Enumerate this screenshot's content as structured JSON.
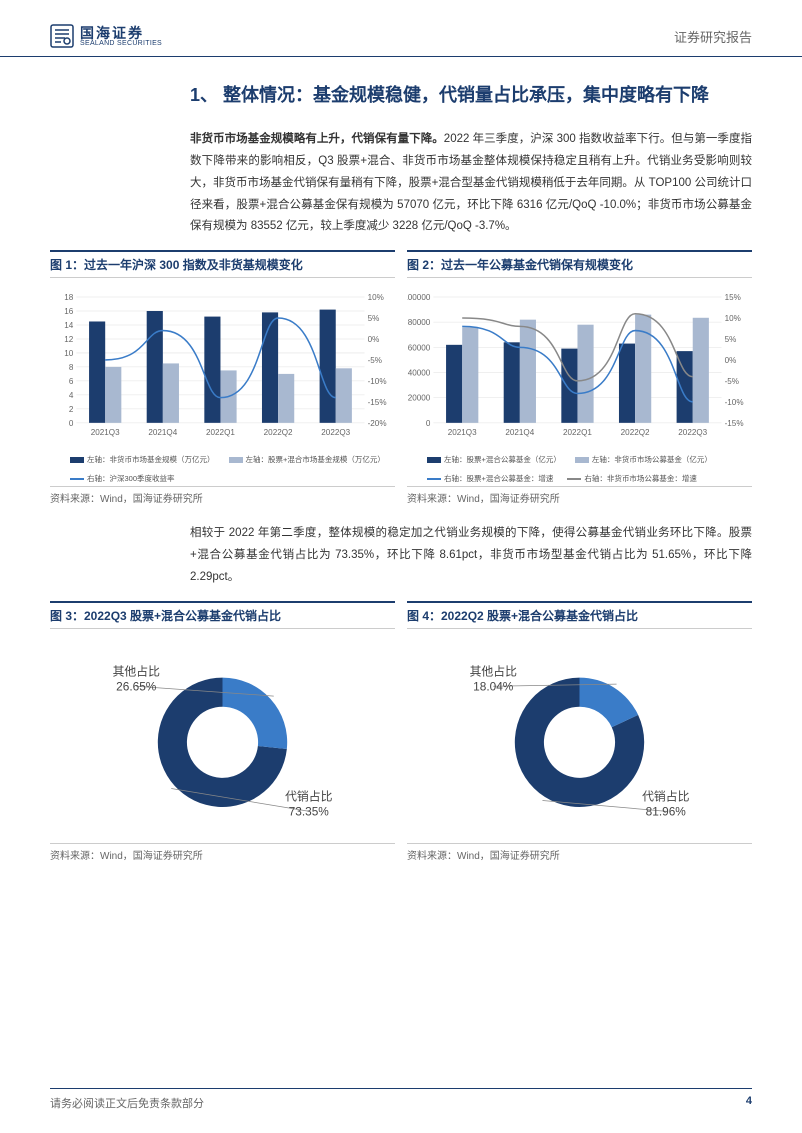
{
  "header": {
    "logo_cn": "国海证券",
    "logo_en": "SEALAND SECURITIES",
    "right": "证券研究报告"
  },
  "section_title": "1、 整体情况：基金规模稳健，代销量占比承压，集中度略有下降",
  "para1_bold": "非货币市场基金规模略有上升，代销保有量下降。",
  "para1_rest": "2022 年三季度，沪深 300 指数收益率下行。但与第一季度指数下降带来的影响相反，Q3 股票+混合、非货币市场基金整体规模保持稳定且稍有上升。代销业务受影响则较大，非货币市场基金代销保有量稍有下降，股票+混合型基金代销规模稍低于去年同期。从 TOP100 公司统计口径来看，股票+混合公募基金保有规模为 57070 亿元，环比下降 6316 亿元/QoQ -10.0%；非货币市场公募基金保有规模为 83552 亿元，较上季度减少 3228 亿元/QoQ -3.7%。",
  "para2": "相较于 2022 年第二季度，整体规模的稳定加之代销业务规模的下降，使得公募基金代销业务环比下降。股票+混合公募基金代销占比为 73.35%，环比下降 8.61pct，非货币市场型基金代销占比为 51.65%，环比下降 2.29pct。",
  "fig1": {
    "title": "图 1：过去一年沪深 300 指数及非货基规模变化",
    "type": "bar+line",
    "categories": [
      "2021Q3",
      "2021Q4",
      "2022Q1",
      "2022Q2",
      "2022Q3"
    ],
    "bar1": {
      "label": "左轴：非货币市场基金规模（万亿元）",
      "values": [
        14.5,
        16.0,
        15.2,
        15.8,
        16.2
      ],
      "color": "#1c3d6e"
    },
    "bar2": {
      "label": "左轴：股票+混合市场基金规模（万亿元）",
      "values": [
        8.0,
        8.5,
        7.5,
        7.0,
        7.8
      ],
      "color": "#a8b8d0"
    },
    "line": {
      "label": "右轴：沪深300季度收益率",
      "values": [
        -5,
        2,
        -14,
        5,
        -14
      ],
      "color": "#3a7cc8"
    },
    "y1_min": 0,
    "y1_max": 18,
    "y1_step": 2,
    "y2_min": -20,
    "y2_max": 10,
    "y2_step": 5,
    "grid_color": "#e0e0e0",
    "axis_font": 8,
    "source": "资料来源：Wind，国海证券研究所"
  },
  "fig2": {
    "title": "图 2：过去一年公募基金代销保有规模变化",
    "type": "bar+line",
    "categories": [
      "2021Q3",
      "2021Q4",
      "2022Q1",
      "2022Q2",
      "2022Q3"
    ],
    "bar1": {
      "label": "左轴：股票+混合公募基金（亿元）",
      "values": [
        62000,
        64000,
        59000,
        63000,
        57000
      ],
      "color": "#1c3d6e"
    },
    "bar2": {
      "label": "左轴：非货币市场公募基金（亿元）",
      "values": [
        76000,
        82000,
        78000,
        86000,
        83500
      ],
      "color": "#a8b8d0"
    },
    "line1": {
      "label": "右轴：股票+混合公募基金：增速",
      "values": [
        8,
        3,
        -8,
        7,
        -10
      ],
      "color": "#3a7cc8"
    },
    "line2": {
      "label": "右轴：非货币市场公募基金：增速",
      "values": [
        10,
        8,
        -5,
        11,
        -4
      ],
      "color": "#888"
    },
    "y1_min": 0,
    "y1_max": 100000,
    "y1_step": 20000,
    "y2_min": -15,
    "y2_max": 15,
    "y2_step": 5,
    "grid_color": "#e0e0e0",
    "axis_font": 8,
    "source": "资料来源：Wind，国海证券研究所"
  },
  "fig3": {
    "title": "图 3：2022Q3 股票+混合公募基金代销占比",
    "type": "donut",
    "slices": [
      {
        "label": "代销占比",
        "value": 73.35,
        "color": "#1c3d6e",
        "label_pos": "right-bottom"
      },
      {
        "label": "其他占比",
        "value": 26.65,
        "color": "#3a7cc8",
        "label_pos": "left-top"
      }
    ],
    "inner_ratio": 0.55,
    "start_angle": 90,
    "label_font": 11,
    "source": "资料来源：Wind，国海证券研究所"
  },
  "fig4": {
    "title": "图 4：2022Q2 股票+混合公募基金代销占比",
    "type": "donut",
    "slices": [
      {
        "label": "代销占比",
        "value": 81.96,
        "color": "#1c3d6e",
        "label_pos": "right-bottom"
      },
      {
        "label": "其他占比",
        "value": 18.04,
        "color": "#3a7cc8",
        "label_pos": "left-top"
      }
    ],
    "inner_ratio": 0.55,
    "start_angle": 90,
    "label_font": 11,
    "source": "资料来源：Wind，国海证券研究所"
  },
  "footer": {
    "left": "请务必阅读正文后免责条款部分",
    "page": "4"
  }
}
